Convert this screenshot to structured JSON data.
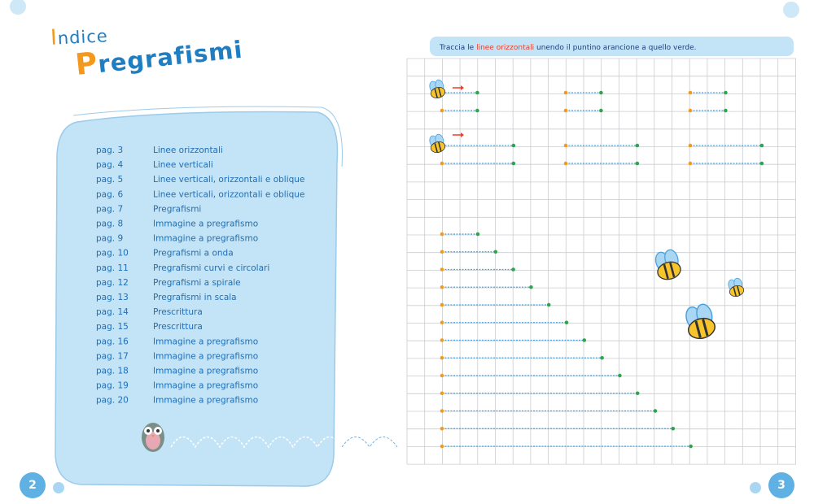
{
  "left_page": {
    "title_line1": "Indice",
    "title_line2": "Pregrafismi",
    "entries": [
      {
        "page": "pag. 3",
        "title": "Linee orizzontali"
      },
      {
        "page": "pag. 4",
        "title": "Linee verticali"
      },
      {
        "page": "pag. 5",
        "title": "Linee verticali, orizzontali e oblique"
      },
      {
        "page": "pag. 6",
        "title": "Linee verticali, orizzontali e oblique"
      },
      {
        "page": "pag. 7",
        "title": "Pregrafismi"
      },
      {
        "page": "pag. 8",
        "title": "Immagine a pregrafismo"
      },
      {
        "page": "pag. 9",
        "title": "Immagine a pregrafismo"
      },
      {
        "page": "pag. 10",
        "title": "Pregrafismi a onda"
      },
      {
        "page": "pag. 11",
        "title": "Pregrafismi curvi e circolari"
      },
      {
        "page": "pag. 12",
        "title": "Pregrafismi a spirale"
      },
      {
        "page": "pag. 13",
        "title": "Pregrafismi in scala"
      },
      {
        "page": "pag. 14",
        "title": "Prescrittura"
      },
      {
        "page": "pag. 15",
        "title": "Prescrittura"
      },
      {
        "page": "pag. 16",
        "title": "Immagine a pregrafismo"
      },
      {
        "page": "pag. 17",
        "title": "Immagine a pregrafismo"
      },
      {
        "page": "pag. 18",
        "title": "Immagine a pregrafismo"
      },
      {
        "page": "pag. 19",
        "title": "Immagine a pregrafismo"
      },
      {
        "page": "pag. 20",
        "title": "Immagine a pregrafismo"
      }
    ],
    "page_number": "2"
  },
  "right_page": {
    "instruction": {
      "before": "Traccia le ",
      "highlight": "linee orizzontali",
      "after": " unendo il puntino arancione a quello verde."
    },
    "page_number": "3"
  }
}
